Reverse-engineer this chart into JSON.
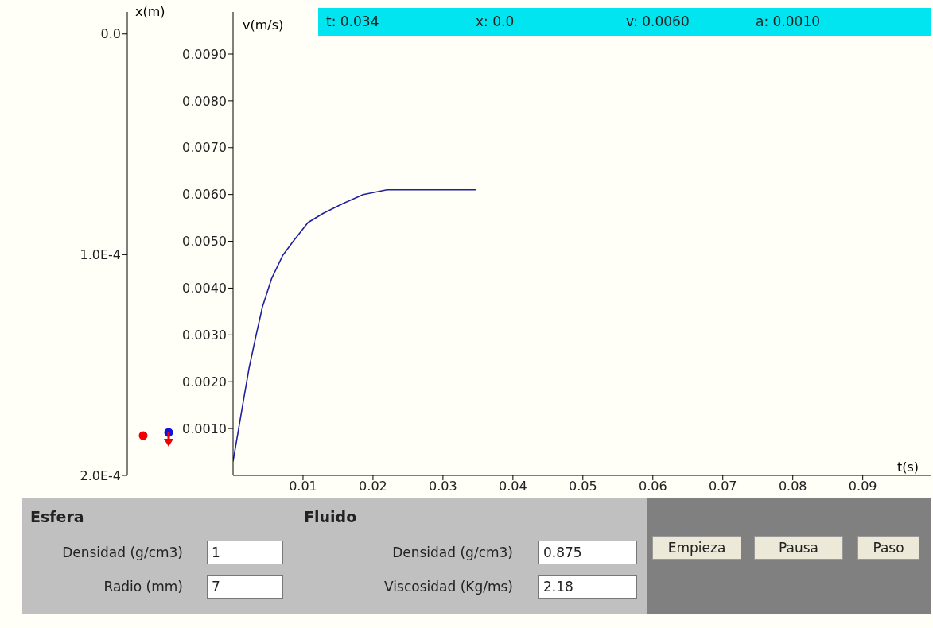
{
  "chart_data": {
    "type": "line",
    "xlabel": "t(s)",
    "ylabel": "v(m/s)",
    "y2label": "x(m)",
    "xlim": [
      0,
      0.0997
    ],
    "xticks": [
      0.01,
      0.02,
      0.03,
      0.04,
      0.05,
      0.06,
      0.07,
      0.08,
      0.09
    ],
    "ylim": [
      0,
      0.0099
    ],
    "yticks": [
      {
        "value": 0.001,
        "label": "0.0010"
      },
      {
        "value": 0.002,
        "label": "0.0020"
      },
      {
        "value": 0.003,
        "label": "0.0030"
      },
      {
        "value": 0.004,
        "label": "0.0040"
      },
      {
        "value": 0.005,
        "label": "0.0050"
      },
      {
        "value": 0.006,
        "label": "0.0060"
      },
      {
        "value": 0.007,
        "label": "0.0070"
      },
      {
        "value": 0.008,
        "label": "0.0080"
      },
      {
        "value": 0.009,
        "label": "0.0090"
      }
    ],
    "y2lim": [
      0.0002,
      -1e-05
    ],
    "y2ticks": [
      {
        "value": 0,
        "label": "0.0"
      },
      {
        "value": 0.0001,
        "label": "1.0E-4"
      },
      {
        "value": 0.0002,
        "label": "2.0E-4"
      }
    ],
    "x": [
      0,
      0.0008,
      0.0016,
      0.0023,
      0.0033,
      0.0042,
      0.0055,
      0.0071,
      0.0086,
      0.0107,
      0.0129,
      0.0156,
      0.0186,
      0.022,
      0.0269,
      0.0347
    ],
    "series": [
      {
        "color": "#1f1fa0",
        "values": [
          0.0003,
          0.001,
          0.0017,
          0.0023,
          0.003,
          0.0036,
          0.0042,
          0.0047,
          0.005,
          0.0054,
          0.0056,
          0.0058,
          0.006,
          0.0061,
          0.0061,
          0.0061
        ]
      }
    ],
    "annotations": [
      "t: 0.034",
      "x: 0.0",
      "v: 0.0060",
      "a: 0.0010",
      "Esfera",
      "Fluido",
      "Densidad (g/cm3)",
      "1",
      "Radio (mm)",
      "7",
      "Densidad (g/cm3)",
      "0.875",
      "Viscosidad (Kg/ms)",
      "2.18",
      "Empieza",
      "Pausa",
      "Paso"
    ]
  }
}
